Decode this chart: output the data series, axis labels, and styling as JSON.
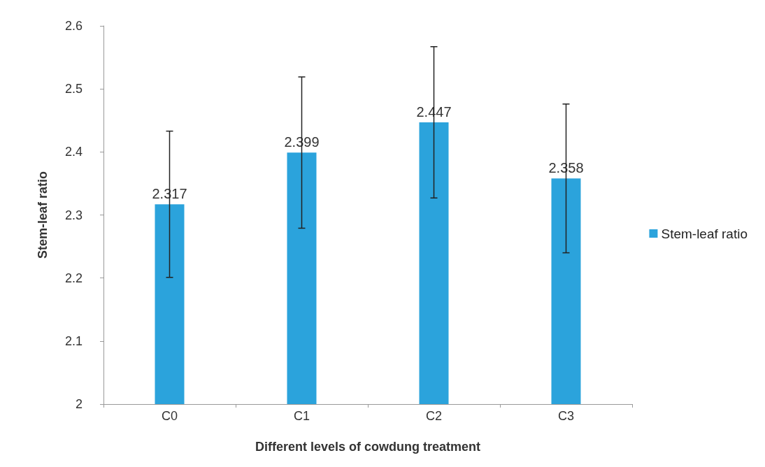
{
  "chart_data": {
    "type": "bar",
    "xlabel": "Different levels of cowdung treatment",
    "ylabel": "Stem-leaf ratio",
    "categories": [
      "C0",
      "C1",
      "C2",
      "C3"
    ],
    "series": [
      {
        "name": "Stem-leaf ratio",
        "color": "#2ba3dc",
        "values": [
          2.317,
          2.399,
          2.447,
          2.358
        ],
        "errors": [
          0.116,
          0.12,
          0.12,
          0.118
        ]
      }
    ],
    "ylim": [
      2,
      2.6
    ],
    "yticks": [
      2,
      2.1,
      2.2,
      2.3,
      2.4,
      2.5,
      2.6
    ],
    "data_labels": true,
    "grid": false,
    "legend": "right"
  }
}
